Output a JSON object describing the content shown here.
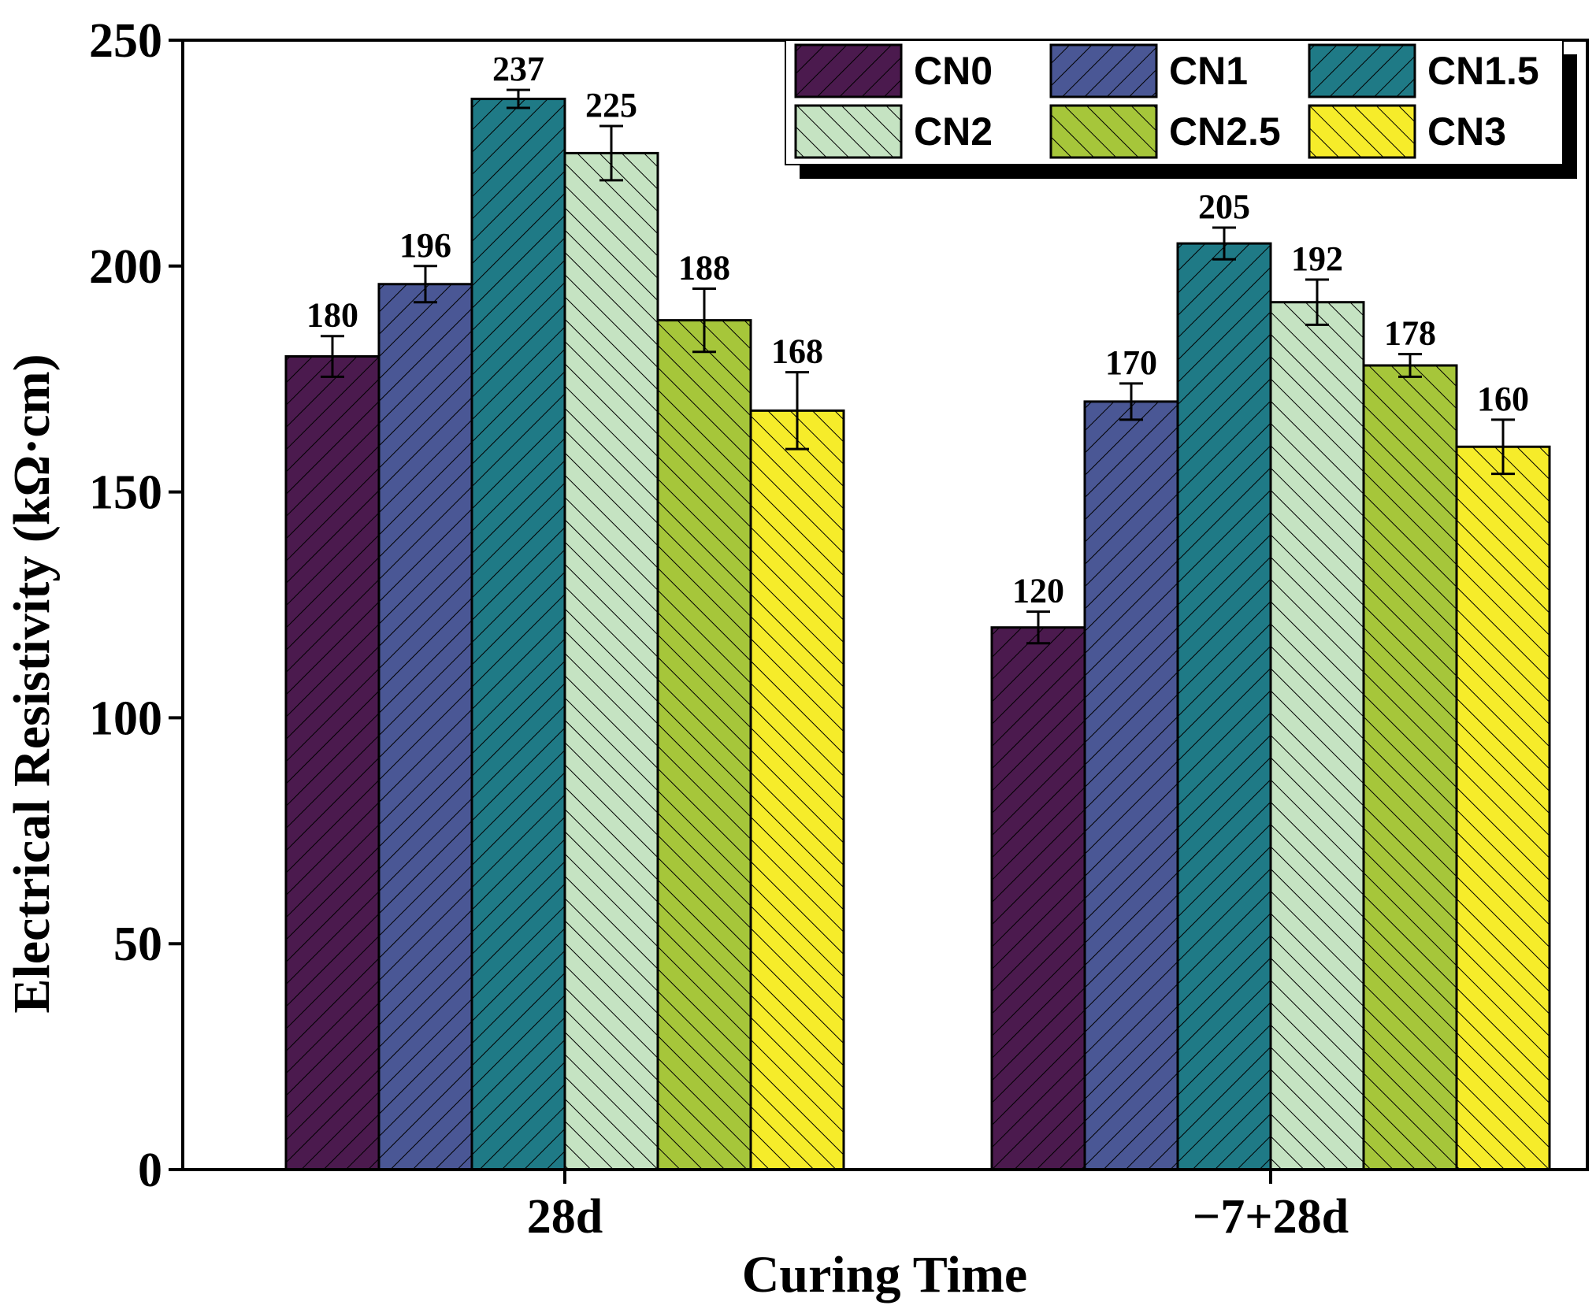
{
  "chart_data": {
    "type": "bar",
    "title": "",
    "xlabel": "Curing Time",
    "ylabel": "Electrical Resistivity (kΩ·cm)",
    "ylim": [
      0,
      250
    ],
    "yticks": [
      0,
      50,
      100,
      150,
      200,
      250
    ],
    "categories": [
      "28d",
      "−7+28d"
    ],
    "legend_position": "top-right",
    "series": [
      {
        "name": "CN0",
        "color": "#4b1a4e",
        "hatch": "forward",
        "values": [
          180,
          120
        ],
        "errors": [
          4.5,
          3.5
        ],
        "labels": [
          "180",
          "120"
        ]
      },
      {
        "name": "CN1",
        "color": "#4a5795",
        "hatch": "forward",
        "values": [
          196,
          170
        ],
        "errors": [
          4,
          4
        ],
        "labels": [
          "196",
          "170"
        ]
      },
      {
        "name": "CN1.5",
        "color": "#1f7a86",
        "hatch": "forward",
        "values": [
          237,
          205
        ],
        "errors": [
          2,
          3.5
        ],
        "labels": [
          "237",
          "205"
        ]
      },
      {
        "name": "CN2",
        "color": "#c5e3c2",
        "hatch": "backward",
        "values": [
          225,
          192
        ],
        "errors": [
          6,
          5
        ],
        "labels": [
          "225",
          "192"
        ]
      },
      {
        "name": "CN2.5",
        "color": "#a6c63a",
        "hatch": "backward",
        "values": [
          188,
          178
        ],
        "errors": [
          7,
          2.5
        ],
        "labels": [
          "188",
          "178"
        ]
      },
      {
        "name": "CN3",
        "color": "#f6ec2a",
        "hatch": "backward",
        "values": [
          168,
          160
        ],
        "errors": [
          8.5,
          6
        ],
        "labels": [
          "168",
          "160"
        ]
      }
    ]
  }
}
